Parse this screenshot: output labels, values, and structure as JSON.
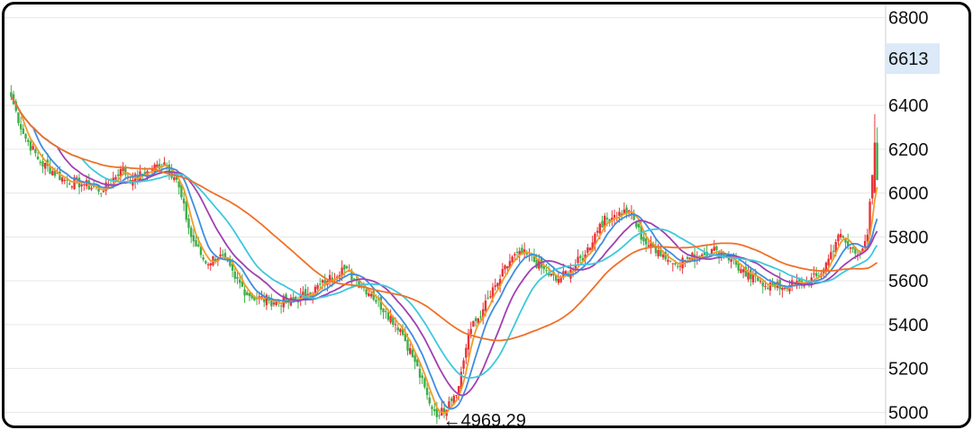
{
  "chart_data": {
    "type": "candlestick",
    "title": "",
    "xlabel": "",
    "ylabel": "",
    "ylim": [
      4940,
      6860
    ],
    "yticks": [
      5000,
      5200,
      5400,
      5600,
      5800,
      6000,
      6200,
      6400,
      6800
    ],
    "current_price_label": "6613",
    "min_annotation": {
      "label": "4969.29",
      "value": 4969.29
    },
    "grid": "horizontal",
    "colors": {
      "up": "#e8333a",
      "down": "#3fae49",
      "ma5": "#f39c26",
      "ma10": "#3f8de0",
      "ma20": "#a040b0",
      "ma30": "#3ec8dc",
      "ma60": "#f07028",
      "grid": "#e6e6e6",
      "price_highlight": "#dbe9f8"
    },
    "series": [
      {
        "key": "ma5",
        "color": "#f39c26"
      },
      {
        "key": "ma10",
        "color": "#3f8de0"
      },
      {
        "key": "ma20",
        "color": "#a040b0"
      },
      {
        "key": "ma30",
        "color": "#3ec8dc"
      },
      {
        "key": "ma60",
        "color": "#f07028"
      }
    ],
    "anchors": [
      [
        0,
        6440
      ],
      [
        5,
        6270
      ],
      [
        12,
        6140
      ],
      [
        22,
        6060
      ],
      [
        30,
        6040
      ],
      [
        38,
        6010
      ],
      [
        45,
        6110
      ],
      [
        50,
        6060
      ],
      [
        56,
        6100
      ],
      [
        63,
        6140
      ],
      [
        68,
        6060
      ],
      [
        74,
        5800
      ],
      [
        80,
        5680
      ],
      [
        86,
        5720
      ],
      [
        92,
        5610
      ],
      [
        98,
        5530
      ],
      [
        106,
        5510
      ],
      [
        114,
        5500
      ],
      [
        122,
        5540
      ],
      [
        130,
        5600
      ],
      [
        136,
        5660
      ],
      [
        142,
        5600
      ],
      [
        148,
        5540
      ],
      [
        154,
        5460
      ],
      [
        160,
        5380
      ],
      [
        166,
        5230
      ],
      [
        172,
        5040
      ],
      [
        176,
        4985
      ],
      [
        180,
        5050
      ],
      [
        184,
        5120
      ],
      [
        188,
        5360
      ],
      [
        194,
        5470
      ],
      [
        200,
        5590
      ],
      [
        206,
        5710
      ],
      [
        212,
        5720
      ],
      [
        218,
        5660
      ],
      [
        224,
        5600
      ],
      [
        230,
        5650
      ],
      [
        236,
        5720
      ],
      [
        242,
        5860
      ],
      [
        248,
        5900
      ],
      [
        254,
        5920
      ],
      [
        260,
        5780
      ],
      [
        266,
        5740
      ],
      [
        272,
        5680
      ],
      [
        278,
        5700
      ],
      [
        284,
        5720
      ],
      [
        290,
        5740
      ],
      [
        296,
        5700
      ],
      [
        302,
        5620
      ],
      [
        308,
        5600
      ],
      [
        314,
        5570
      ],
      [
        320,
        5580
      ],
      [
        326,
        5590
      ],
      [
        332,
        5620
      ],
      [
        336,
        5700
      ],
      [
        340,
        5810
      ],
      [
        344,
        5760
      ],
      [
        348,
        5720
      ],
      [
        352,
        5810
      ],
      [
        355,
        6200
      ],
      [
        356,
        6080
      ]
    ]
  }
}
